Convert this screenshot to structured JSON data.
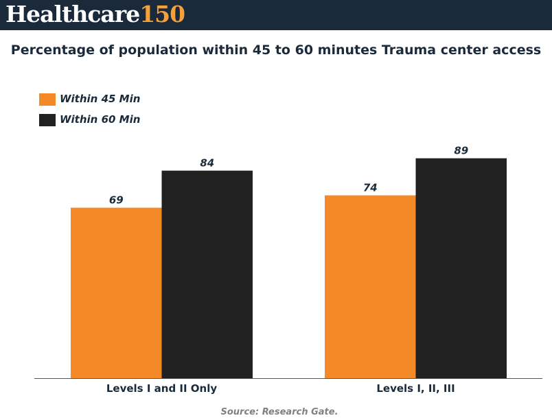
{
  "header": {
    "logo_word": "Healthcare",
    "logo_number": "150"
  },
  "chart_data": {
    "type": "bar",
    "title": "Percentage of population within 45 to 60 minutes Trauma center access",
    "categories": [
      "Levels I and II Only",
      "Levels I, II, III"
    ],
    "series": [
      {
        "name": "Within 45 Min",
        "values": [
          69,
          74
        ],
        "color": "#f38a27"
      },
      {
        "name": "Within 60 Min",
        "values": [
          84,
          89
        ],
        "color": "#212121"
      }
    ],
    "ylim": [
      0,
      100
    ],
    "grid": false,
    "legend_position": "top-left",
    "source": "Source: Research Gate."
  }
}
